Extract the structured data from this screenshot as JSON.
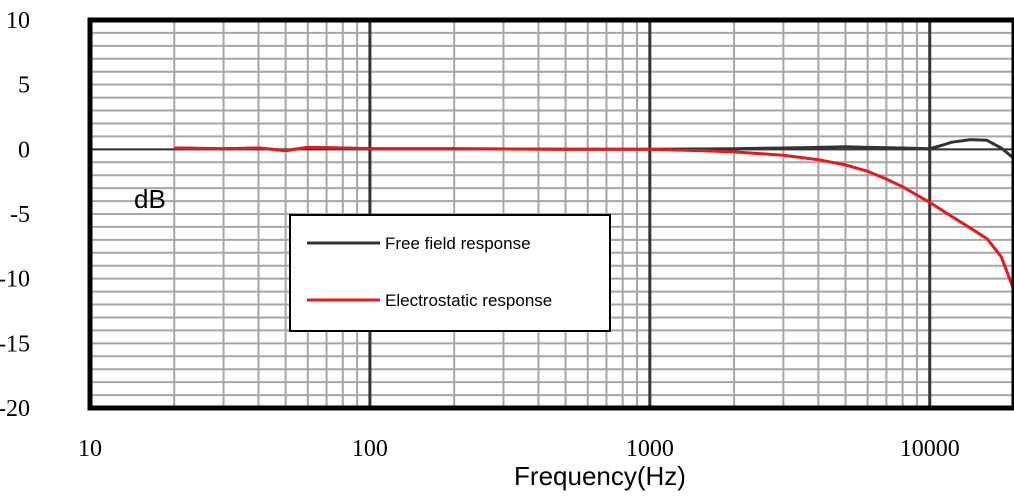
{
  "chart_data": {
    "type": "line",
    "title": "",
    "xlabel": "Frequency(Hz)",
    "ylabel": "dB",
    "x_scale": "log",
    "xlim": [
      10,
      20000
    ],
    "ylim": [
      -20,
      10
    ],
    "grid": true,
    "x_ticks": [
      10,
      100,
      1000,
      10000
    ],
    "x_tick_labels": [
      "10",
      "100",
      "1000",
      "10000"
    ],
    "y_ticks": [
      10,
      5,
      0,
      -5,
      -10,
      -15,
      -20
    ],
    "y_tick_labels": [
      "10",
      "5",
      "0",
      "-5",
      "-10",
      "-15",
      "-20"
    ],
    "legend_position": "lower-left inside plot",
    "series": [
      {
        "name": "Free field response",
        "color": "#333333",
        "points": [
          [
            20,
            0.1
          ],
          [
            30,
            0.05
          ],
          [
            40,
            0.1
          ],
          [
            50,
            -0.1
          ],
          [
            60,
            0.15
          ],
          [
            80,
            0.1
          ],
          [
            100,
            0.05
          ],
          [
            200,
            0.05
          ],
          [
            500,
            0.0
          ],
          [
            1000,
            0.0
          ],
          [
            2000,
            0.05
          ],
          [
            3000,
            0.1
          ],
          [
            4000,
            0.15
          ],
          [
            5000,
            0.2
          ],
          [
            6000,
            0.15
          ],
          [
            8000,
            0.1
          ],
          [
            10000,
            0.05
          ],
          [
            11000,
            0.3
          ],
          [
            12000,
            0.55
          ],
          [
            14000,
            0.75
          ],
          [
            16000,
            0.7
          ],
          [
            18000,
            0.1
          ],
          [
            20000,
            -0.7
          ]
        ]
      },
      {
        "name": "Electrostatic response",
        "color": "#e8191e",
        "points": [
          [
            20,
            0.1
          ],
          [
            30,
            0.05
          ],
          [
            40,
            0.1
          ],
          [
            50,
            -0.1
          ],
          [
            60,
            0.15
          ],
          [
            80,
            0.1
          ],
          [
            100,
            0.05
          ],
          [
            200,
            0.05
          ],
          [
            500,
            0.0
          ],
          [
            1000,
            0.0
          ],
          [
            1500,
            -0.1
          ],
          [
            2000,
            -0.2
          ],
          [
            3000,
            -0.45
          ],
          [
            4000,
            -0.8
          ],
          [
            5000,
            -1.2
          ],
          [
            6000,
            -1.7
          ],
          [
            7000,
            -2.3
          ],
          [
            8000,
            -2.9
          ],
          [
            10000,
            -4.1
          ],
          [
            12000,
            -5.2
          ],
          [
            14000,
            -6.1
          ],
          [
            16000,
            -6.9
          ],
          [
            18000,
            -8.3
          ],
          [
            20000,
            -10.9
          ]
        ]
      }
    ]
  }
}
